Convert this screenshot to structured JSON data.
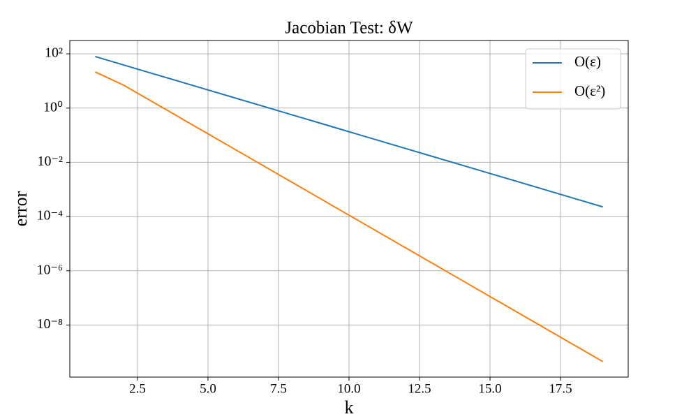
{
  "chart_data": {
    "type": "line",
    "title": "Jacobian Test: δW",
    "x_label": "k",
    "y_label": "error",
    "x": [
      1,
      2,
      3,
      4,
      5,
      6,
      7,
      8,
      9,
      10,
      11,
      12,
      13,
      14,
      15,
      16,
      17,
      18,
      19
    ],
    "series": [
      {
        "name": "O(ε)",
        "color": "#1f77b4",
        "values": [
          79.4,
          39.1,
          19.2,
          9.46,
          4.66,
          2.29,
          1.13,
          0.555,
          0.273,
          0.134,
          0.0661,
          0.0325,
          0.016,
          0.00787,
          0.00387,
          0.00191,
          0.000938,
          0.000461,
          0.000227
        ]
      },
      {
        "name": "O(ε²)",
        "color": "#ff7f0e",
        "values": [
          21.4,
          7.08,
          1.78,
          0.447,
          0.112,
          0.0282,
          0.00708,
          0.00178,
          0.000447,
          0.000112,
          2.82e-05,
          7.08e-06,
          1.78e-06,
          4.47e-07,
          1.12e-07,
          2.82e-08,
          7.08e-09,
          1.78e-09,
          4.47e-10
        ]
      }
    ],
    "xlim": [
      0.1,
      19.9
    ],
    "xticks": [
      2.5,
      {
        "value": 5,
        "label": "5.0"
      },
      7.5,
      {
        "value": 10,
        "label": "10.0"
      },
      12.5,
      {
        "value": 15,
        "label": "15.0"
      },
      17.5
    ],
    "ylim": [
      1.2e-10,
      310
    ],
    "yscale": "log",
    "yticks": [
      {
        "value": 100,
        "label": "10²"
      },
      {
        "value": 1,
        "label": "10⁰"
      },
      {
        "value": 0.01,
        "label": "10⁻²"
      },
      {
        "value": 0.0001,
        "label": "10⁻⁴"
      },
      {
        "value": 1e-06,
        "label": "10⁻⁶"
      },
      {
        "value": 1e-08,
        "label": "10⁻⁸"
      }
    ],
    "grid": true,
    "legend": "upper right"
  }
}
